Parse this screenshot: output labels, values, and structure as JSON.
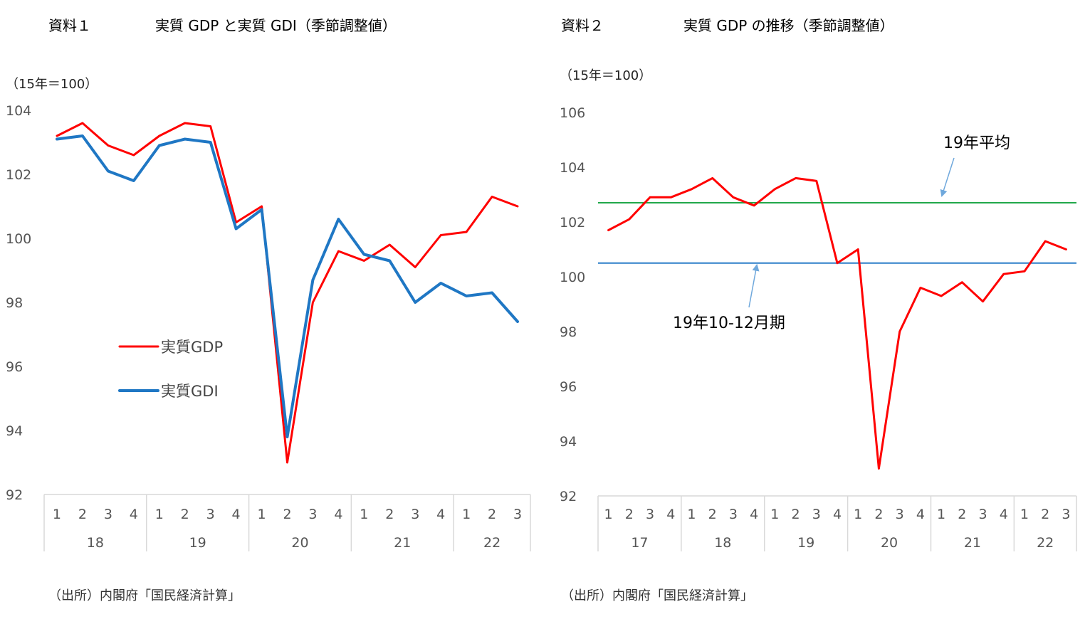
{
  "page": {
    "left": {
      "label": "資料１",
      "title": "実質 GDP と実質 GDI（季節調整値）",
      "unit": "（15年＝100）",
      "source": "（出所）内閣府「国民経済計算」"
    },
    "right": {
      "label": "資料２",
      "title": "実質 GDP の推移（季節調整値）",
      "unit": "（15年＝100）",
      "source": "（出所）内閣府「国民経済計算」"
    }
  },
  "colors": {
    "gdp": "#ff0000",
    "gdi": "#1f77c4",
    "avg19": "#21a84a",
    "q4_19": "#2b7fc8",
    "axis": "#d9d9d9",
    "arrow": "#6fa8dc"
  },
  "chart_data": [
    {
      "type": "line",
      "title": "実質 GDP と実質 GDI（季節調整値）",
      "ylabel": "（15年＝100）",
      "ylim": [
        92,
        104
      ],
      "yticks": [
        92,
        94,
        96,
        98,
        100,
        102,
        104
      ],
      "categories": [
        "1",
        "2",
        "3",
        "4",
        "1",
        "2",
        "3",
        "4",
        "1",
        "2",
        "3",
        "4",
        "1",
        "2",
        "3",
        "4",
        "1",
        "2",
        "3"
      ],
      "year_groups": [
        {
          "label": "18",
          "count": 4
        },
        {
          "label": "19",
          "count": 4
        },
        {
          "label": "20",
          "count": 4
        },
        {
          "label": "21",
          "count": 4
        },
        {
          "label": "22",
          "count": 3
        }
      ],
      "series": [
        {
          "name": "実質GDP",
          "color": "#ff0000",
          "values": [
            103.2,
            103.6,
            102.9,
            102.6,
            103.2,
            103.6,
            103.5,
            100.5,
            101.0,
            93.0,
            98.0,
            99.6,
            99.3,
            99.8,
            99.1,
            100.1,
            100.2,
            101.3,
            101.0
          ]
        },
        {
          "name": "実質GDI",
          "color": "#1f77c4",
          "values": [
            103.1,
            103.2,
            102.1,
            101.8,
            102.9,
            103.1,
            103.0,
            100.3,
            100.9,
            93.8,
            98.7,
            100.6,
            99.5,
            99.3,
            98.0,
            98.6,
            98.2,
            98.3,
            97.4
          ]
        }
      ],
      "legend": "center-left"
    },
    {
      "type": "line",
      "title": "実質 GDP の推移（季節調整値）",
      "ylabel": "（15年＝100）",
      "ylim": [
        92,
        106
      ],
      "yticks": [
        92,
        94,
        96,
        98,
        100,
        102,
        104,
        106
      ],
      "categories": [
        "1",
        "2",
        "3",
        "4",
        "1",
        "2",
        "3",
        "4",
        "1",
        "2",
        "3",
        "4",
        "1",
        "2",
        "3",
        "4",
        "1",
        "2",
        "3",
        "4",
        "1",
        "2",
        "3"
      ],
      "year_groups": [
        {
          "label": "17",
          "count": 4
        },
        {
          "label": "18",
          "count": 4
        },
        {
          "label": "19",
          "count": 4
        },
        {
          "label": "20",
          "count": 4
        },
        {
          "label": "21",
          "count": 4
        },
        {
          "label": "22",
          "count": 3
        }
      ],
      "series": [
        {
          "name": "実質GDP",
          "color": "#ff0000",
          "values": [
            101.7,
            102.1,
            102.9,
            102.9,
            103.2,
            103.6,
            102.9,
            102.6,
            103.2,
            103.6,
            103.5,
            100.5,
            101.0,
            93.0,
            98.0,
            99.6,
            99.3,
            99.8,
            99.1,
            100.1,
            100.2,
            101.3,
            101.0
          ]
        }
      ],
      "reference_lines": [
        {
          "label": "19年平均",
          "value": 102.7,
          "color": "#21a84a"
        },
        {
          "label": "19年10-12月期",
          "value": 100.5,
          "color": "#2b7fc8"
        }
      ]
    }
  ]
}
